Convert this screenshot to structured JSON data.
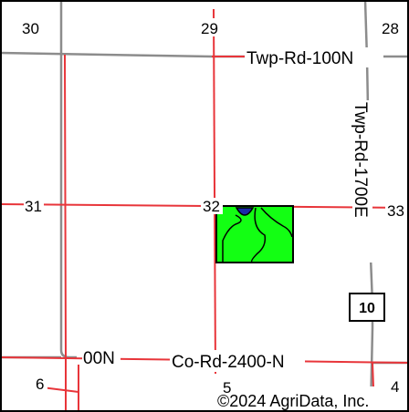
{
  "sections": [
    "30",
    "29",
    "28",
    "31",
    "32",
    "33",
    "6",
    "5",
    "4"
  ],
  "roads": {
    "twp_rd_100n": "Twp-Rd-100N",
    "twp_rd_1700e": "Twp-Rd-1700E",
    "co_rd_2400n": "Co-Rd-2400-N",
    "partial_00n": "00N"
  },
  "route_shield": "10",
  "copyright": "©2024 AgriData, Inc.",
  "colors": {
    "section_line": "#e8353a",
    "road_gray": "#8c8c8c",
    "field_fill": "#13ff13",
    "water": "#1a2aa8",
    "label_bg": "#ffffff"
  }
}
